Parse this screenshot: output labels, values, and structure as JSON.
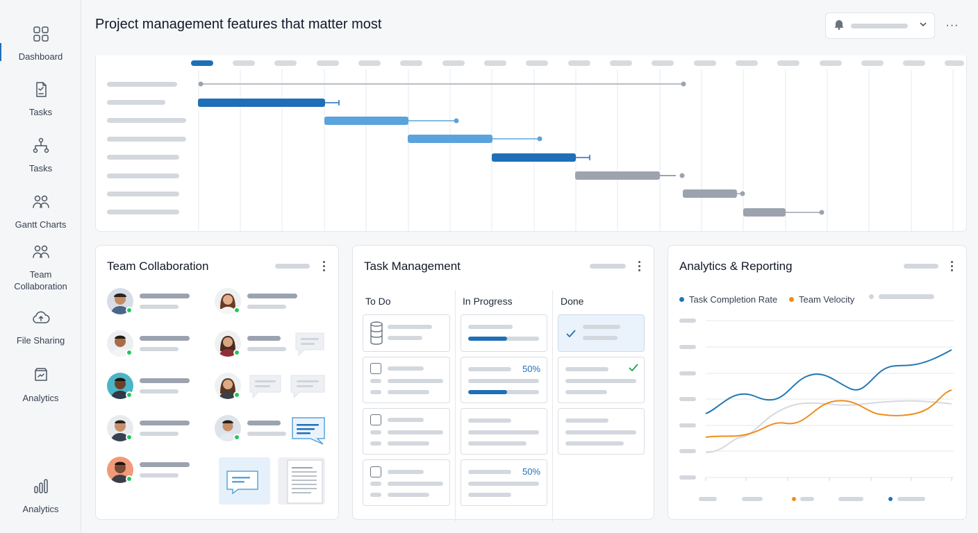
{
  "header": {
    "title": "Project management features that matter most"
  },
  "sidebar": {
    "items": [
      {
        "label": "Dashboard",
        "icon": "grid-icon"
      },
      {
        "label": "Tasks",
        "icon": "clipboard-check-icon"
      },
      {
        "label": "Tasks",
        "icon": "hierarchy-icon"
      },
      {
        "label": "Gantt Charts",
        "icon": "people-icon"
      },
      {
        "label": "Team Collaboration",
        "icon": "people-icon"
      },
      {
        "label": "File Sharing",
        "icon": "cloud-upload-icon"
      },
      {
        "label": "Analytics",
        "icon": "report-icon"
      },
      {
        "label": "Analytics",
        "icon": "bar-chart-icon"
      }
    ],
    "active_index": 0
  },
  "team": {
    "title": "Team Collaboration"
  },
  "tasks": {
    "title": "Task Management",
    "columns": [
      "To Do",
      "In Progress",
      "Done"
    ],
    "in_progress": [
      {
        "progress": 0.55
      },
      {
        "progress_label": "50%",
        "progress": 0.5
      },
      {
        "progress": null
      },
      {
        "progress_label": "50%",
        "progress": null
      }
    ]
  },
  "analytics": {
    "title": "Analytics & Reporting",
    "legend": [
      {
        "label": "Task Completion Rate",
        "color": "#1f77b4"
      },
      {
        "label": "Team Velocity",
        "color": "#f08c1a"
      }
    ]
  },
  "colors": {
    "accent": "#1f6fb8",
    "bar_light": "#5aa3dc",
    "bar_gray": "#9ca3af",
    "online": "#22c55e",
    "check": "#16a34a"
  }
}
